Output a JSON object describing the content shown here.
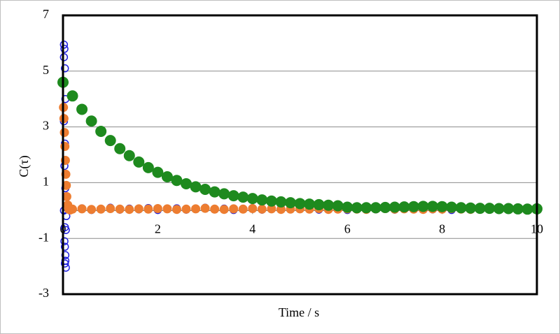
{
  "chart_data": {
    "type": "scatter",
    "x_label": "Time / s",
    "y_label": "C(τ)",
    "xlim": [
      0,
      10
    ],
    "xticks": [
      0,
      2,
      4,
      6,
      8,
      10
    ],
    "ylim": [
      -3,
      7
    ],
    "yticks": [
      -3,
      -1,
      1,
      3,
      5,
      7
    ],
    "grid": true,
    "series": [
      {
        "color": "#1f1fe0",
        "marker": "open",
        "x": [
          0.02,
          0.03,
          0.02,
          0.04,
          0.03,
          0.05,
          0.02,
          0.04,
          0.03,
          0.05,
          0.02,
          0.04,
          0.03,
          0.05,
          0.04,
          0.06,
          0.05,
          0.04,
          0.06,
          0.07,
          0.08,
          0.2,
          0.4,
          0.6,
          0.8,
          1.0,
          1.2,
          1.4,
          1.6,
          1.8,
          2.0,
          2.2,
          2.4,
          2.6,
          2.8,
          3.0,
          3.2,
          3.4,
          3.6,
          3.8,
          4.0,
          4.2,
          4.4,
          4.6,
          4.8,
          5.0,
          5.2,
          5.4,
          5.6,
          5.8,
          6.0,
          6.2,
          6.4,
          6.6,
          6.8,
          7.0,
          7.2,
          7.4,
          7.6,
          7.8,
          8.0,
          8.2,
          8.4,
          8.6,
          8.8,
          9.0,
          9.2,
          9.4,
          9.6,
          9.8,
          10.0
        ],
        "values": [
          5.95,
          5.8,
          5.5,
          5.1,
          4.6,
          4.0,
          3.2,
          2.4,
          1.6,
          0.8,
          0.0,
          -0.6,
          -1.1,
          -1.6,
          -1.9,
          -2.05,
          -1.8,
          -1.3,
          -0.7,
          -0.2,
          0.1,
          0.05,
          0.08,
          0.02,
          0.06,
          0.1,
          0.03,
          0.07,
          0.04,
          0.09,
          0.02,
          0.06,
          0.08,
          0.03,
          0.05,
          0.1,
          0.04,
          0.07,
          0.02,
          0.06,
          0.09,
          0.03,
          0.05,
          0.08,
          0.04,
          0.06,
          0.1,
          0.03,
          0.07,
          0.05,
          0.02,
          0.08,
          0.06,
          0.04,
          0.09,
          0.03,
          0.07,
          0.05,
          0.1,
          0.04,
          0.06,
          0.02,
          0.08,
          0.05,
          0.07,
          0.03,
          0.09,
          0.06,
          0.04,
          0.08,
          0.05
        ]
      },
      {
        "color": "#ed7d31",
        "marker": "filled",
        "x": [
          0.01,
          0.02,
          0.03,
          0.04,
          0.05,
          0.06,
          0.07,
          0.08,
          0.1,
          0.12,
          0.15,
          0.2,
          0.4,
          0.6,
          0.8,
          1.0,
          1.2,
          1.4,
          1.6,
          1.8,
          2.0,
          2.2,
          2.4,
          2.6,
          2.8,
          3.0,
          3.2,
          3.4,
          3.6,
          3.8,
          4.0,
          4.2,
          4.4,
          4.6,
          4.8,
          5.0,
          5.2,
          5.4,
          5.6,
          5.8,
          6.0,
          6.2,
          6.4,
          6.6,
          6.8,
          7.0,
          7.2,
          7.4,
          7.6,
          7.8,
          8.0,
          8.2,
          8.4,
          8.6
        ],
        "values": [
          3.7,
          3.3,
          2.8,
          2.3,
          1.8,
          1.3,
          0.9,
          0.5,
          0.2,
          0.05,
          0.02,
          0.05,
          0.06,
          0.04,
          0.05,
          0.07,
          0.05,
          0.04,
          0.06,
          0.05,
          0.07,
          0.06,
          0.04,
          0.05,
          0.06,
          0.08,
          0.05,
          0.04,
          0.06,
          0.05,
          0.07,
          0.05,
          0.06,
          0.04,
          0.05,
          0.06,
          0.05,
          0.07,
          0.04,
          0.05,
          0.06,
          0.05,
          0.04,
          0.06,
          0.07,
          0.05,
          0.06,
          0.05,
          0.04,
          0.06,
          0.05,
          0.07,
          0.05,
          0.04
        ]
      },
      {
        "color": "#1e8a1e",
        "marker": "filled",
        "x": [
          0.0,
          0.2,
          0.4,
          0.6,
          0.8,
          1.0,
          1.2,
          1.4,
          1.6,
          1.8,
          2.0,
          2.2,
          2.4,
          2.6,
          2.8,
          3.0,
          3.2,
          3.4,
          3.6,
          3.8,
          4.0,
          4.2,
          4.4,
          4.6,
          4.8,
          5.0,
          5.2,
          5.4,
          5.6,
          5.8,
          6.0,
          6.2,
          6.4,
          6.6,
          6.8,
          7.0,
          7.2,
          7.4,
          7.6,
          7.8,
          8.0,
          8.2,
          8.4,
          8.6,
          8.8,
          9.0,
          9.2,
          9.4,
          9.6,
          9.8,
          10.0
        ],
        "values": [
          4.6,
          4.11,
          3.63,
          3.21,
          2.84,
          2.51,
          2.22,
          1.97,
          1.74,
          1.54,
          1.37,
          1.21,
          1.08,
          0.96,
          0.85,
          0.76,
          0.67,
          0.6,
          0.53,
          0.48,
          0.43,
          0.38,
          0.34,
          0.31,
          0.28,
          0.25,
          0.23,
          0.21,
          0.19,
          0.17,
          0.12,
          0.1,
          0.1,
          0.1,
          0.11,
          0.12,
          0.13,
          0.14,
          0.15,
          0.15,
          0.14,
          0.12,
          0.1,
          0.09,
          0.08,
          0.08,
          0.07,
          0.07,
          0.06,
          0.05,
          0.06
        ]
      }
    ]
  }
}
